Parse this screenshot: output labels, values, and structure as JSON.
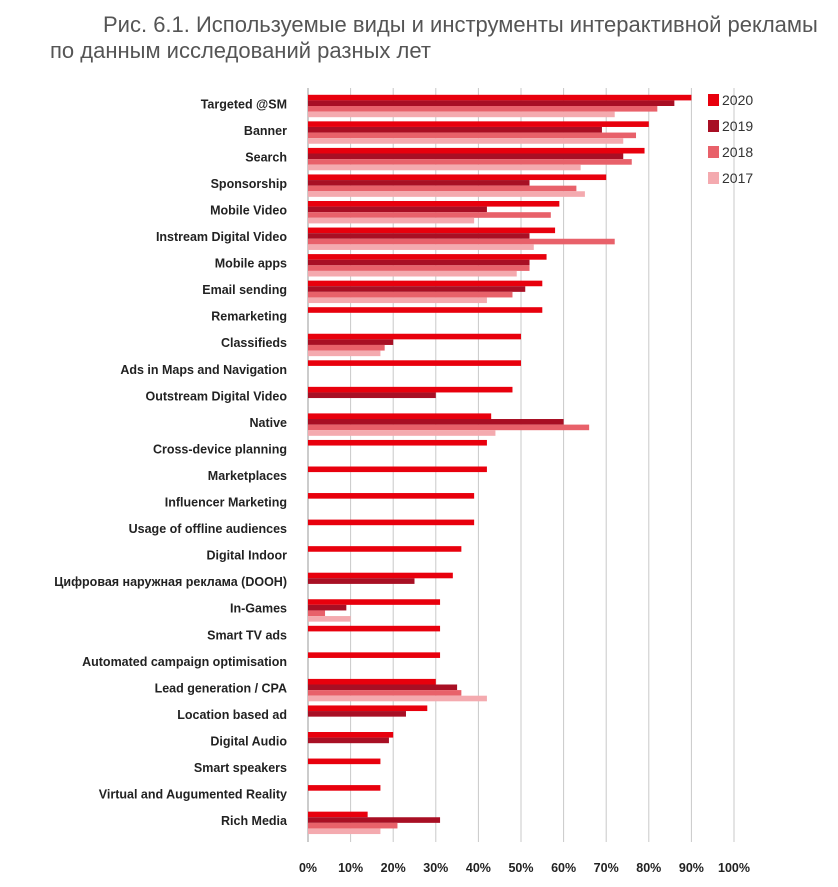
{
  "title_line1": "Рис. 6.1. Используемые виды и инструменты интерактивной рекламы",
  "title_line2": "по данным исследований разных лет",
  "chart_data": {
    "type": "bar",
    "orientation": "horizontal",
    "xlim": [
      0,
      100
    ],
    "x_ticks": [
      "0%",
      "10%",
      "20%",
      "30%",
      "40%",
      "50%",
      "60%",
      "70%",
      "80%",
      "90%",
      "100%"
    ],
    "grid": true,
    "legend_position": "top-right",
    "categories": [
      "Targeted @SM",
      "Banner",
      "Search",
      "Sponsorship",
      "Mobile Video",
      "Instream Digital Video",
      "Mobile apps",
      "Email sending",
      "Remarketing",
      "Classifieds",
      "Ads in Maps and Navigation",
      "Outstream Digital Video",
      "Native",
      "Cross-device planning",
      "Marketplaces",
      "Influencer Marketing",
      "Usage of offline audiences",
      "Digital Indoor",
      "Цифровая наружная реклама (DOOH)",
      "In-Games",
      "Smart TV ads",
      "Automated campaign optimisation",
      "Lead generation / CPA",
      "Location based ad",
      "Digital Audio",
      "Smart speakers",
      "Virtual and Augumented Reality",
      "Rich Media"
    ],
    "series": [
      {
        "name": "2020",
        "color": "#e8000d",
        "values": [
          90,
          80,
          79,
          70,
          59,
          58,
          56,
          55,
          55,
          50,
          50,
          48,
          43,
          42,
          42,
          39,
          39,
          36,
          34,
          31,
          31,
          31,
          30,
          28,
          20,
          17,
          17,
          14
        ]
      },
      {
        "name": "2019",
        "color": "#a80f24",
        "values": [
          86,
          69,
          74,
          52,
          42,
          52,
          52,
          51,
          null,
          20,
          null,
          30,
          60,
          null,
          null,
          null,
          null,
          null,
          25,
          9,
          null,
          null,
          35,
          23,
          19,
          null,
          null,
          31
        ]
      },
      {
        "name": "2018",
        "color": "#e8616a",
        "values": [
          82,
          77,
          76,
          63,
          57,
          72,
          52,
          48,
          null,
          18,
          null,
          null,
          66,
          null,
          null,
          null,
          null,
          null,
          null,
          4,
          null,
          null,
          36,
          null,
          null,
          null,
          null,
          21
        ]
      },
      {
        "name": "2017",
        "color": "#f4aaaf",
        "values": [
          72,
          74,
          64,
          65,
          39,
          53,
          49,
          42,
          null,
          17,
          null,
          null,
          44,
          null,
          null,
          null,
          null,
          null,
          null,
          10,
          null,
          null,
          42,
          null,
          null,
          null,
          null,
          17
        ]
      }
    ]
  }
}
